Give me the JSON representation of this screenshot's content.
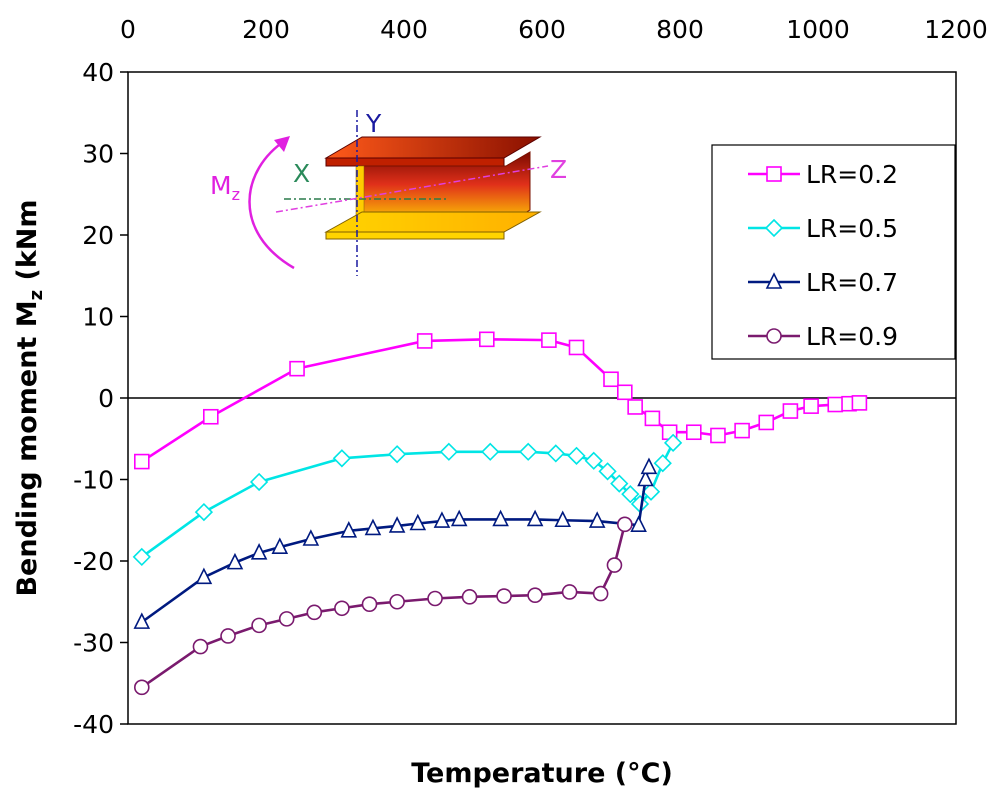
{
  "chart_data": {
    "type": "line",
    "xlabel": "Temperature (°C)",
    "ylabel": "Bending moment M",
    "ylabel_sub": "z",
    "ylabel_unit": " (kNm",
    "xlim": [
      0,
      1200
    ],
    "ylim": [
      -40,
      40
    ],
    "x_ticks": [
      "0",
      "200",
      "400",
      "600",
      "800",
      "1000",
      "1200"
    ],
    "y_ticks": [
      "40",
      "30",
      "20",
      "10",
      "0",
      "-10",
      "-20",
      "-30",
      "-40"
    ],
    "x_tick_values": [
      0,
      200,
      400,
      600,
      800,
      1000,
      1200
    ],
    "y_tick_values": [
      40,
      30,
      20,
      10,
      0,
      -10,
      -20,
      -30,
      -40
    ],
    "x_axis_position": "top",
    "grid": false,
    "zero_line": true,
    "legend_position": "top-right",
    "series": [
      {
        "name": "LR=0.2",
        "marker": "square",
        "color": "#ff00ff",
        "x": [
          20,
          120,
          245,
          430,
          520,
          610,
          650,
          700,
          720,
          735,
          760,
          785,
          820,
          855,
          890,
          925,
          960,
          990,
          1025,
          1045,
          1060
        ],
        "y": [
          -7.8,
          -2.3,
          3.6,
          7.0,
          7.2,
          7.1,
          6.2,
          2.3,
          0.7,
          -1.1,
          -2.5,
          -4.2,
          -4.2,
          -4.6,
          -4.0,
          -3.0,
          -1.6,
          -1.0,
          -0.8,
          -0.7,
          -0.6
        ]
      },
      {
        "name": "LR=0.5",
        "marker": "diamond",
        "color": "#00e5e5",
        "x": [
          20,
          110,
          190,
          310,
          390,
          465,
          525,
          580,
          620,
          650,
          675,
          695,
          712,
          728,
          742,
          758,
          775,
          790
        ],
        "y": [
          -19.5,
          -14.0,
          -10.3,
          -7.4,
          -6.9,
          -6.6,
          -6.6,
          -6.6,
          -6.8,
          -7.1,
          -7.7,
          -9.0,
          -10.5,
          -11.8,
          -13.0,
          -11.5,
          -8.0,
          -5.5
        ]
      },
      {
        "name": "LR=0.7",
        "marker": "triangle",
        "color": "#001a80",
        "x": [
          20,
          110,
          155,
          190,
          220,
          265,
          320,
          355,
          390,
          420,
          455,
          480,
          540,
          590,
          630,
          680,
          740,
          750,
          755
        ],
        "y": [
          -27.5,
          -22.0,
          -20.2,
          -19.0,
          -18.3,
          -17.3,
          -16.3,
          -16.0,
          -15.7,
          -15.4,
          -15.1,
          -14.9,
          -14.9,
          -14.9,
          -15.0,
          -15.1,
          -15.6,
          -10.0,
          -8.5
        ]
      },
      {
        "name": "LR=0.9",
        "marker": "circle",
        "color": "#7a1a6e",
        "x": [
          20,
          105,
          145,
          190,
          230,
          270,
          310,
          350,
          390,
          445,
          495,
          545,
          590,
          640,
          685,
          705,
          720
        ],
        "y": [
          -35.5,
          -30.5,
          -29.2,
          -27.9,
          -27.1,
          -26.3,
          -25.8,
          -25.3,
          -25.0,
          -24.6,
          -24.4,
          -24.3,
          -24.2,
          -23.8,
          -24.0,
          -20.5,
          -15.5
        ]
      }
    ],
    "inset": {
      "label_y": "Y",
      "label_x": "X",
      "label_z": "Z",
      "label_m": "M",
      "label_m_sub": "z"
    }
  }
}
